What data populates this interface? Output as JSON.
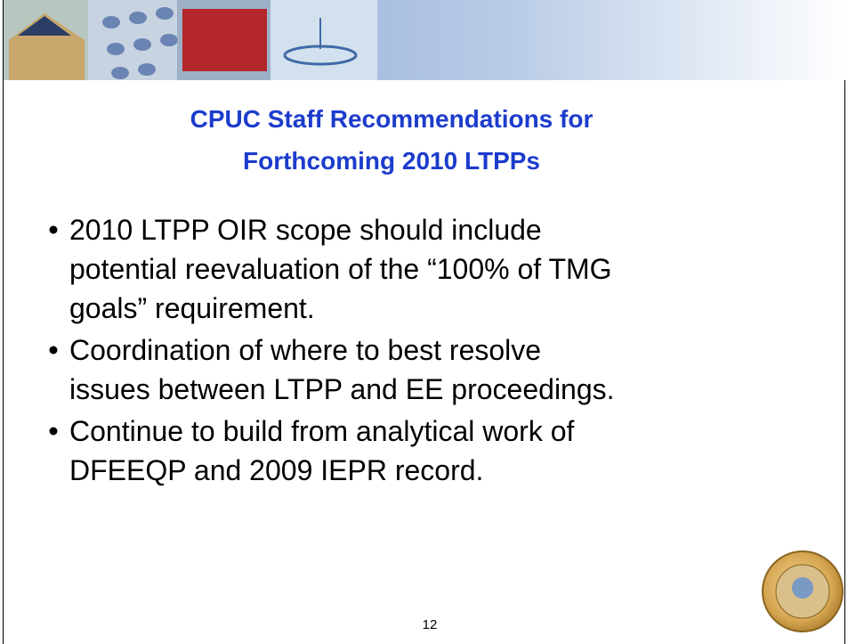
{
  "slide": {
    "title_lines": [
      "CPUC Staff Recommendations for",
      "Forthcoming 2010 LTPPs"
    ],
    "bullets": [
      [
        "2010 LTPP OIR scope should include",
        "potential reevaluation of the “100% of TMG",
        "goals” requirement."
      ],
      [
        "Coordination of where to best resolve",
        "issues between LTPP and EE proceedings."
      ],
      [
        "Continue to build from analytical work of",
        "DFEEQP and 2009 IEPR record."
      ]
    ],
    "page_number": "12"
  }
}
